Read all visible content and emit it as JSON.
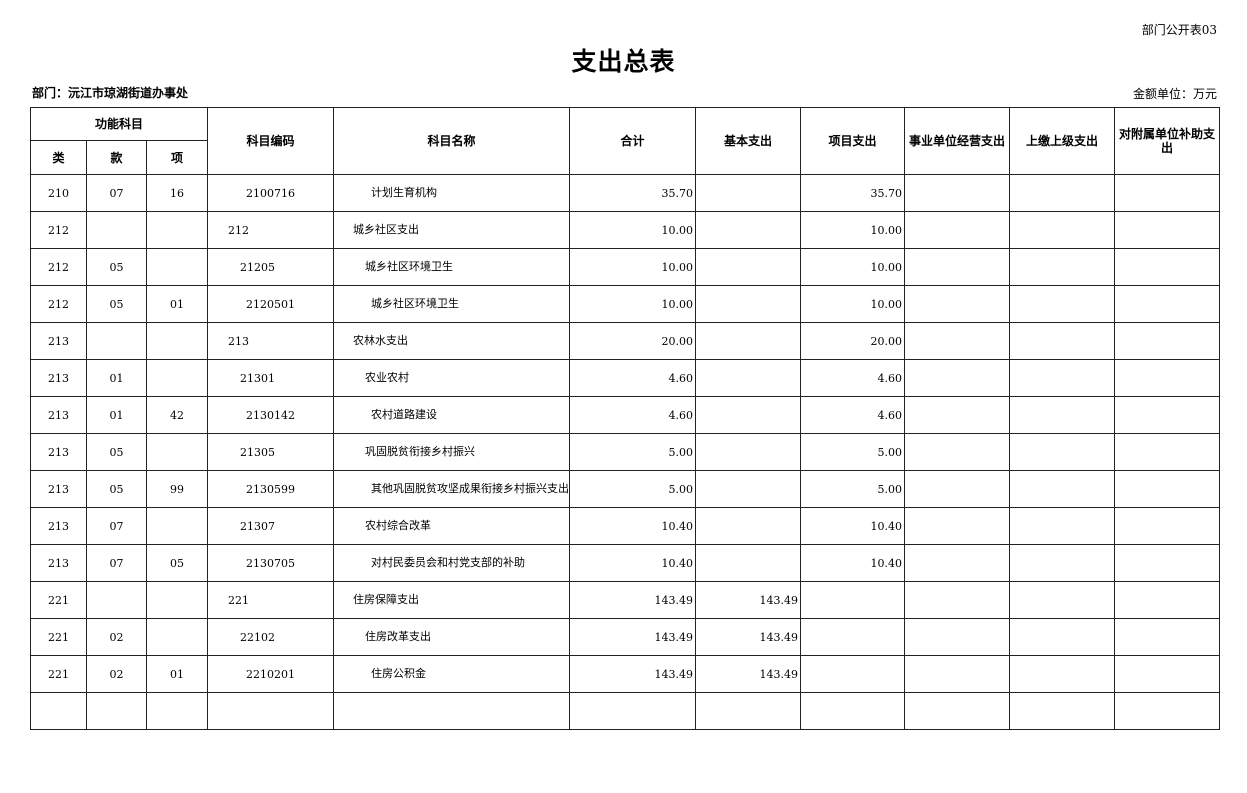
{
  "header": {
    "form_no": "部门公开表03",
    "title": "支出总表",
    "department": "部门：沅江市琼湖街道办事处",
    "unit": "金额单位：万元"
  },
  "columns": {
    "func_group": "功能科目",
    "lei": "类",
    "kuan": "款",
    "xiang": "项",
    "code": "科目编码",
    "name": "科目名称",
    "total": "合计",
    "basic": "基本支出",
    "project": "项目支出",
    "business": "事业单位经营支出",
    "upper": "上缴上级支出",
    "subsidy": "对附属单位补助支出"
  },
  "rows": [
    {
      "lei": "210",
      "kuan": "07",
      "xiang": "16",
      "code": "2100716",
      "name": "计划生育机构",
      "level": 3,
      "total": "35.70",
      "basic": "",
      "project": "35.70",
      "business": "",
      "upper": "",
      "subsidy": ""
    },
    {
      "lei": "212",
      "kuan": "",
      "xiang": "",
      "code": "212",
      "name": "城乡社区支出",
      "level": 1,
      "total": "10.00",
      "basic": "",
      "project": "10.00",
      "business": "",
      "upper": "",
      "subsidy": ""
    },
    {
      "lei": "212",
      "kuan": "05",
      "xiang": "",
      "code": "21205",
      "name": "城乡社区环境卫生",
      "level": 2,
      "total": "10.00",
      "basic": "",
      "project": "10.00",
      "business": "",
      "upper": "",
      "subsidy": ""
    },
    {
      "lei": "212",
      "kuan": "05",
      "xiang": "01",
      "code": "2120501",
      "name": "城乡社区环境卫生",
      "level": 3,
      "total": "10.00",
      "basic": "",
      "project": "10.00",
      "business": "",
      "upper": "",
      "subsidy": ""
    },
    {
      "lei": "213",
      "kuan": "",
      "xiang": "",
      "code": "213",
      "name": "农林水支出",
      "level": 1,
      "total": "20.00",
      "basic": "",
      "project": "20.00",
      "business": "",
      "upper": "",
      "subsidy": ""
    },
    {
      "lei": "213",
      "kuan": "01",
      "xiang": "",
      "code": "21301",
      "name": "农业农村",
      "level": 2,
      "total": "4.60",
      "basic": "",
      "project": "4.60",
      "business": "",
      "upper": "",
      "subsidy": ""
    },
    {
      "lei": "213",
      "kuan": "01",
      "xiang": "42",
      "code": "2130142",
      "name": "农村道路建设",
      "level": 3,
      "total": "4.60",
      "basic": "",
      "project": "4.60",
      "business": "",
      "upper": "",
      "subsidy": ""
    },
    {
      "lei": "213",
      "kuan": "05",
      "xiang": "",
      "code": "21305",
      "name": "巩固脱贫衔接乡村振兴",
      "level": 2,
      "total": "5.00",
      "basic": "",
      "project": "5.00",
      "business": "",
      "upper": "",
      "subsidy": ""
    },
    {
      "lei": "213",
      "kuan": "05",
      "xiang": "99",
      "code": "2130599",
      "name": "其他巩固脱贫攻坚成果衔接乡村振兴支出",
      "level": 3,
      "total": "5.00",
      "basic": "",
      "project": "5.00",
      "business": "",
      "upper": "",
      "subsidy": ""
    },
    {
      "lei": "213",
      "kuan": "07",
      "xiang": "",
      "code": "21307",
      "name": "农村综合改革",
      "level": 2,
      "total": "10.40",
      "basic": "",
      "project": "10.40",
      "business": "",
      "upper": "",
      "subsidy": ""
    },
    {
      "lei": "213",
      "kuan": "07",
      "xiang": "05",
      "code": "2130705",
      "name": "对村民委员会和村党支部的补助",
      "level": 3,
      "total": "10.40",
      "basic": "",
      "project": "10.40",
      "business": "",
      "upper": "",
      "subsidy": ""
    },
    {
      "lei": "221",
      "kuan": "",
      "xiang": "",
      "code": "221",
      "name": "住房保障支出",
      "level": 1,
      "total": "143.49",
      "basic": "143.49",
      "project": "",
      "business": "",
      "upper": "",
      "subsidy": ""
    },
    {
      "lei": "221",
      "kuan": "02",
      "xiang": "",
      "code": "22102",
      "name": "住房改革支出",
      "level": 2,
      "total": "143.49",
      "basic": "143.49",
      "project": "",
      "business": "",
      "upper": "",
      "subsidy": ""
    },
    {
      "lei": "221",
      "kuan": "02",
      "xiang": "01",
      "code": "2210201",
      "name": "住房公积金",
      "level": 3,
      "total": "143.49",
      "basic": "143.49",
      "project": "",
      "business": "",
      "upper": "",
      "subsidy": ""
    },
    {
      "lei": "",
      "kuan": "",
      "xiang": "",
      "code": "",
      "name": "",
      "level": 1,
      "total": "",
      "basic": "",
      "project": "",
      "business": "",
      "upper": "",
      "subsidy": ""
    }
  ]
}
